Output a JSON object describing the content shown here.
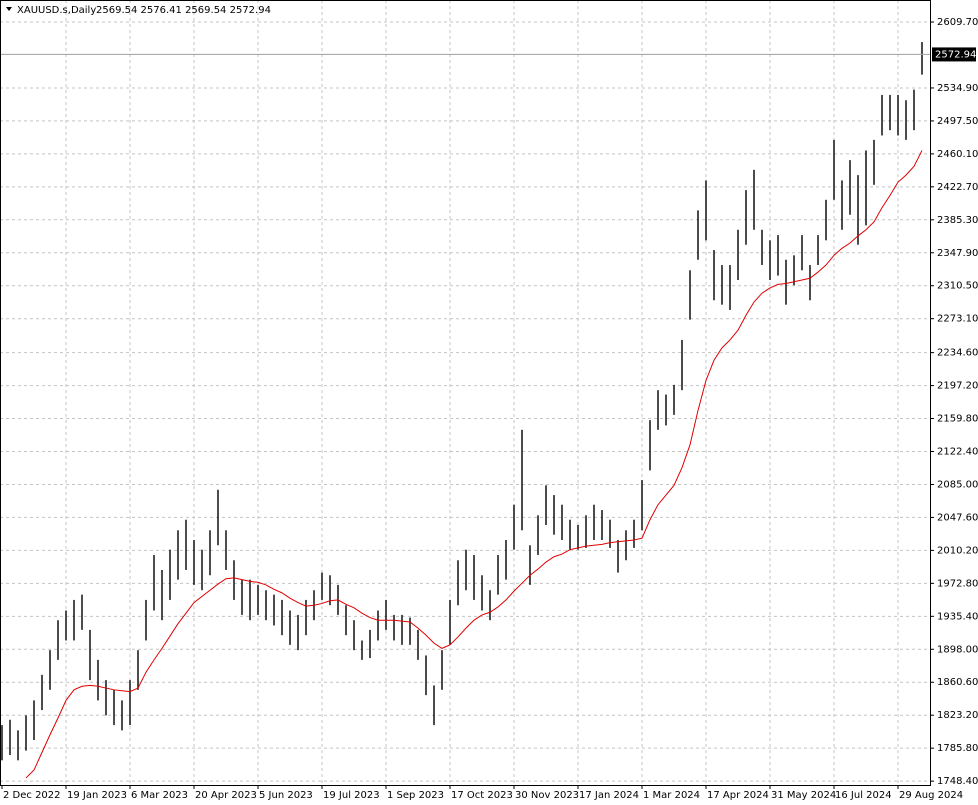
{
  "chart_data": {
    "type": "hlc-bars",
    "title": "XAUUSD.s,Daily",
    "subtitle": "2569.54 2576.41 2569.54 2572.94",
    "last_price": 2572.94,
    "bar_color": "#000000",
    "ma_color": "#e00000",
    "grid": true,
    "categories": [
      "2 Dec 2022",
      null,
      null,
      null,
      null,
      null,
      null,
      null,
      "19 Jan 2023",
      null,
      null,
      null,
      null,
      null,
      null,
      null,
      "6 Mar 2023",
      null,
      null,
      null,
      null,
      null,
      null,
      null,
      "20 Apr 2023",
      null,
      null,
      null,
      null,
      null,
      null,
      null,
      "5 Jun 2023",
      null,
      null,
      null,
      null,
      null,
      null,
      null,
      "19 Jul 2023",
      null,
      null,
      null,
      null,
      null,
      null,
      null,
      "1 Sep 2023",
      null,
      null,
      null,
      null,
      null,
      null,
      null,
      "17 Oct 2023",
      null,
      null,
      null,
      null,
      null,
      null,
      null,
      "30 Nov 2023",
      null,
      null,
      null,
      null,
      null,
      null,
      null,
      "17 Jan 2024",
      null,
      null,
      null,
      null,
      null,
      null,
      null,
      "1 Mar 2024",
      null,
      null,
      null,
      null,
      null,
      null,
      null,
      "17 Apr 2024",
      null,
      null,
      null,
      null,
      null,
      null,
      null,
      "31 May 2024",
      null,
      null,
      null,
      null,
      null,
      null,
      null,
      "16 Jul 2024",
      null,
      null,
      null,
      null,
      null,
      null,
      null,
      "29 Aug 2024",
      null,
      null,
      null
    ],
    "high": [
      1812,
      1818,
      1806,
      1823,
      1840,
      1869,
      1897,
      1931,
      1942,
      1954,
      1960,
      1920,
      1886,
      1863,
      1852,
      1840,
      1863,
      1897,
      1954,
      2005,
      1988,
      2011,
      2033,
      2045,
      2022,
      2011,
      2033,
      2079,
      2033,
      1999,
      1977,
      1977,
      1971,
      1965,
      1960,
      1954,
      1942,
      1937,
      1954,
      1965,
      1985,
      1982,
      1971,
      1948,
      1931,
      1908,
      1920,
      1942,
      1954,
      1937,
      1937,
      1934,
      1920,
      1891,
      1857,
      1897,
      1954,
      1999,
      2011,
      2005,
      1982,
      1965,
      2005,
      2022,
      2062,
      2147,
      2016,
      2050,
      2084,
      2073,
      2062,
      2045,
      2039,
      2050,
      2062,
      2056,
      2045,
      2022,
      2033,
      2045,
      2090,
      2158,
      2192,
      2187,
      2198,
      2249,
      2328,
      2396,
      2430,
      2351,
      2334,
      2334,
      2374,
      2419,
      2442,
      2374,
      2362,
      2368,
      2340,
      2345,
      2368,
      2334,
      2368,
      2408,
      2476,
      2430,
      2453,
      2436,
      2464,
      2476,
      2527,
      2527,
      2527,
      2521,
      2533,
      2587
    ],
    "low": [
      1772,
      1778,
      1772,
      1783,
      1795,
      1829,
      1852,
      1886,
      1908,
      1908,
      1920,
      1863,
      1840,
      1823,
      1812,
      1806,
      1812,
      1852,
      1908,
      1942,
      1931,
      1954,
      1977,
      1988,
      1971,
      1965,
      1982,
      2016,
      1988,
      1954,
      1937,
      1931,
      1937,
      1931,
      1925,
      1914,
      1903,
      1897,
      1914,
      1931,
      1954,
      1948,
      1937,
      1914,
      1897,
      1886,
      1888,
      1908,
      1920,
      1908,
      1903,
      1903,
      1886,
      1846,
      1812,
      1852,
      1903,
      1948,
      1965,
      1954,
      1942,
      1931,
      1960,
      1977,
      2011,
      2033,
      1971,
      2005,
      2039,
      2028,
      2022,
      2011,
      2011,
      2013,
      2022,
      2022,
      2013,
      1985,
      1999,
      2013,
      2033,
      2101,
      2147,
      2152,
      2164,
      2192,
      2272,
      2340,
      2362,
      2294,
      2289,
      2283,
      2317,
      2357,
      2374,
      2334,
      2317,
      2322,
      2289,
      2311,
      2328,
      2294,
      2334,
      2362,
      2408,
      2374,
      2391,
      2357,
      2379,
      2425,
      2481,
      2487,
      2481,
      2476,
      2487,
      2550
    ],
    "ma": [
      null,
      null,
      null,
      1752,
      1761,
      1781,
      1801,
      1820,
      1840,
      1852,
      1856,
      1857,
      1856,
      1854,
      1852,
      1851,
      1850,
      1854,
      1872,
      1886,
      1899,
      1913,
      1927,
      1939,
      1951,
      1958,
      1965,
      1972,
      1978,
      1979,
      1977,
      1975,
      1974,
      1971,
      1966,
      1962,
      1956,
      1951,
      1947,
      1948,
      1950,
      1953,
      1954,
      1949,
      1945,
      1939,
      1934,
      1931,
      1931,
      1931,
      1930,
      1929,
      1922,
      1914,
      1905,
      1899,
      1903,
      1912,
      1922,
      1931,
      1937,
      1940,
      1946,
      1954,
      1964,
      1973,
      1982,
      1989,
      1997,
      2003,
      2006,
      2011,
      2013,
      2015,
      2016,
      2017,
      2019,
      2020,
      2021,
      2022,
      2024,
      2045,
      2062,
      2073,
      2084,
      2104,
      2130,
      2169,
      2203,
      2226,
      2240,
      2249,
      2260,
      2277,
      2292,
      2302,
      2308,
      2312,
      2313,
      2315,
      2317,
      2319,
      2326,
      2334,
      2345,
      2353,
      2359,
      2367,
      2374,
      2383,
      2399,
      2413,
      2428,
      2436,
      2446,
      2464
    ],
    "ylim": [
      1744.0,
      2634.7
    ],
    "yticks": [
      {
        "value": 1748.4,
        "label": "1748.40"
      },
      {
        "value": 1785.8,
        "label": "1785.80"
      },
      {
        "value": 1823.2,
        "label": "1823.20"
      },
      {
        "value": 1860.6,
        "label": "1860.60"
      },
      {
        "value": 1898.0,
        "label": "1898.00"
      },
      {
        "value": 1935.4,
        "label": "1935.40"
      },
      {
        "value": 1972.8,
        "label": "1972.80"
      },
      {
        "value": 2010.2,
        "label": "2010.20"
      },
      {
        "value": 2047.6,
        "label": "2047.60"
      },
      {
        "value": 2085.0,
        "label": "2085.00"
      },
      {
        "value": 2122.4,
        "label": "2122.40"
      },
      {
        "value": 2159.8,
        "label": "2159.80"
      },
      {
        "value": 2197.2,
        "label": "2197.20"
      },
      {
        "value": 2234.6,
        "label": "2234.60"
      },
      {
        "value": 2273.1,
        "label": "2273.10"
      },
      {
        "value": 2310.5,
        "label": "2310.50"
      },
      {
        "value": 2347.9,
        "label": "2347.90"
      },
      {
        "value": 2385.3,
        "label": "2385.30"
      },
      {
        "value": 2422.7,
        "label": "2422.70"
      },
      {
        "value": 2460.1,
        "label": "2460.10"
      },
      {
        "value": 2497.5,
        "label": "2497.50"
      },
      {
        "value": 2534.9,
        "label": "2534.90"
      },
      {
        "value": 2609.7,
        "label": "2609.70"
      }
    ]
  }
}
